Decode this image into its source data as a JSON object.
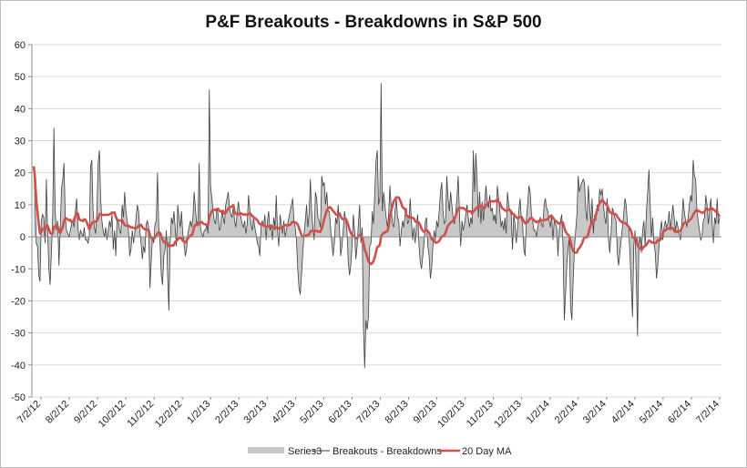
{
  "chart_data": {
    "type": "area",
    "title": "P&F Breakouts - Breakdowns in S&P 500",
    "xlabel": "",
    "ylabel": "",
    "ylim": [
      -50,
      60
    ],
    "yticks": [
      60,
      50,
      40,
      30,
      20,
      10,
      0,
      -10,
      -20,
      -30,
      -40,
      -50
    ],
    "x_tick_labels": [
      "7/2/12",
      "8/2/12",
      "9/2/12",
      "10/2/12",
      "11/2/12",
      "12/2/12",
      "1/2/13",
      "2/2/13",
      "3/2/13",
      "4/2/13",
      "5/2/13",
      "6/2/13",
      "7/2/13",
      "8/2/13",
      "9/2/13",
      "10/2/13",
      "11/2/13",
      "12/2/13",
      "1/2/14",
      "2/2/14",
      "3/2/14",
      "4/2/14",
      "5/2/14",
      "6/2/14",
      "7/2/14"
    ],
    "grid": true,
    "legend_position": "bottom",
    "colors": {
      "area": "#c8c8c8",
      "line": "#404040",
      "ma": "#d0504a",
      "grid": "#d9d9d9",
      "axis": "#8c8c8c"
    },
    "series": [
      {
        "name": "Series3",
        "type": "area",
        "values": [
          22,
          15,
          -2,
          -3,
          -12,
          -14,
          5,
          7,
          6,
          -2,
          18,
          2,
          -10,
          -15,
          -5,
          6,
          34,
          8,
          2,
          5,
          -9,
          3,
          15,
          18,
          23,
          6,
          2,
          1,
          0,
          2,
          4,
          5,
          3,
          8,
          12,
          3,
          -1,
          2,
          1,
          0,
          3,
          -1,
          -1,
          -2,
          0,
          22,
          24,
          8,
          3,
          1,
          8,
          23,
          27,
          12,
          5,
          2,
          0,
          3,
          -1,
          2,
          5,
          3,
          7,
          -4,
          2,
          -6,
          6,
          5,
          2,
          1,
          10,
          6,
          14,
          8,
          5,
          2,
          -6,
          -4,
          2,
          -2,
          1,
          6,
          10,
          8,
          2,
          -2,
          -7,
          -3,
          -5,
          4,
          5,
          3,
          -16,
          -8,
          0,
          -2,
          4,
          5,
          20,
          3,
          -2,
          -12,
          -15,
          -6,
          -4,
          2,
          -12,
          -23,
          -2,
          6,
          4,
          8,
          3,
          -3,
          10,
          6,
          3,
          8,
          1,
          -2,
          -6,
          -4,
          1,
          3,
          5,
          3,
          6,
          14,
          9,
          4,
          5,
          23,
          3,
          1,
          0,
          2,
          2,
          4,
          1,
          46,
          16,
          12,
          8,
          5,
          4,
          9,
          7,
          2,
          3,
          8,
          6,
          4,
          10,
          12,
          14,
          9,
          7,
          6,
          10,
          5,
          3,
          7,
          11,
          8,
          6,
          4,
          3,
          5,
          1,
          4,
          13,
          9,
          4,
          2,
          6,
          3,
          1,
          -2,
          -3,
          -6,
          4,
          5,
          3,
          7,
          -1,
          5,
          8,
          2,
          4,
          -1,
          6,
          3,
          13,
          2,
          -3,
          7,
          4,
          1,
          5,
          0,
          2,
          4,
          6,
          8,
          10,
          12,
          5,
          3,
          -1,
          -10,
          -16,
          -18,
          -12,
          -5,
          1,
          5,
          10,
          3,
          7,
          18,
          8,
          3,
          -1,
          14,
          12,
          6,
          5,
          3,
          19,
          16,
          17,
          10,
          14,
          8,
          8,
          3,
          -2,
          -6,
          -2,
          6,
          4,
          10,
          3,
          -6,
          -3,
          2,
          8,
          5,
          2,
          -8,
          -12,
          -9,
          -3,
          7,
          2,
          -7,
          -3,
          4,
          10,
          -2,
          3,
          -28,
          -41,
          -26,
          -29,
          -25,
          -3,
          -2,
          8,
          4,
          14,
          24,
          27,
          10,
          12,
          48,
          8,
          14,
          10,
          6,
          3,
          7,
          16,
          9,
          4,
          3,
          8,
          12,
          6,
          5,
          -3,
          2,
          5,
          3,
          7,
          9,
          4,
          5,
          12,
          5,
          -1,
          3,
          -2,
          4,
          7,
          -3,
          -8,
          -10,
          -6,
          -2,
          5,
          6,
          -3,
          -6,
          -13,
          -10,
          -3,
          2,
          -1,
          5,
          3,
          8,
          14,
          17,
          8,
          4,
          5,
          19,
          12,
          8,
          14,
          10,
          6,
          4,
          7,
          12,
          19,
          8,
          -3,
          5,
          2,
          4,
          7,
          10,
          6,
          3,
          6,
          4,
          27,
          14,
          26,
          18,
          6,
          14,
          4,
          11,
          5,
          11,
          16,
          11,
          9,
          13,
          8,
          9,
          5,
          7,
          4,
          16,
          12,
          8,
          3,
          5,
          2,
          6,
          1,
          14,
          10,
          8,
          7,
          -4,
          7,
          4,
          -2,
          3,
          8,
          12,
          6,
          4,
          -4,
          -6,
          6,
          10,
          16,
          14,
          7,
          5,
          2,
          2,
          0,
          3,
          5,
          6,
          4,
          3,
          10,
          12,
          9,
          8,
          5,
          3,
          7,
          -1,
          5,
          4,
          3,
          -6,
          2,
          5,
          7,
          -3,
          -26,
          -18,
          -9,
          -4,
          0,
          -22,
          -26,
          -14,
          -4,
          2,
          7,
          19,
          14,
          16,
          17,
          18,
          17,
          8,
          5,
          16,
          10,
          4,
          12,
          1,
          7,
          5,
          10,
          8,
          15,
          13,
          15,
          10,
          6,
          4,
          12,
          -1,
          -5,
          1,
          9,
          8,
          6,
          5,
          -5,
          -9,
          -5,
          -1,
          3,
          7,
          12,
          10,
          4,
          3,
          -6,
          -15,
          -25,
          -3,
          2,
          -13,
          -31,
          -4,
          0,
          -5,
          2,
          5,
          -3,
          8,
          14,
          21,
          10,
          0,
          6,
          -2,
          -5,
          -13,
          -9,
          -3,
          2,
          5,
          -1,
          3,
          5,
          3,
          4,
          8,
          2,
          6,
          10,
          6,
          2,
          5,
          3,
          1,
          -1,
          4,
          12,
          8,
          5,
          3,
          6,
          10,
          13,
          11,
          24,
          19,
          18,
          8,
          5,
          2,
          -1,
          0,
          5,
          6,
          13,
          10,
          4,
          8,
          12,
          5,
          -2,
          6,
          4,
          12,
          4,
          6
        ]
      },
      {
        "name": "Breakouts - Breakdowns",
        "type": "line",
        "source": "Series3"
      },
      {
        "name": "20 Day MA",
        "type": "line",
        "smoothing_window": 20,
        "source": "Series3"
      }
    ]
  }
}
